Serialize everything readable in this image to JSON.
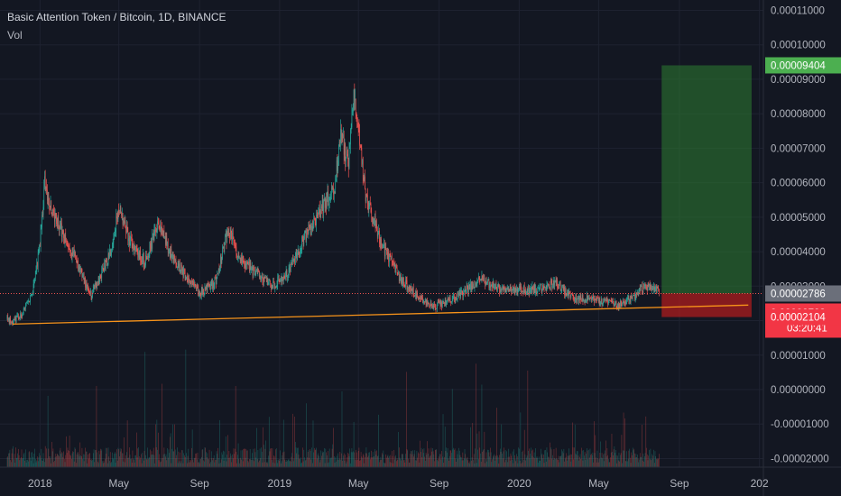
{
  "header": {
    "title": "Basic Attention Token / Bitcoin, 1D, BINANCE",
    "indicator": "Vol"
  },
  "colors": {
    "background": "#131722",
    "grid": "#1e2230",
    "up": "#26a69a",
    "down": "#ef5350",
    "trendline": "#f7931a",
    "profit_zone": "#2e7d32",
    "loss_zone": "#b71c1c",
    "profit_label": "#4caf50",
    "loss_label": "#f23645",
    "current_label": "#6b6f7a"
  },
  "chart_data": {
    "type": "candlestick",
    "symbol": "Basic Attention Token / Bitcoin",
    "interval": "1D",
    "exchange": "BINANCE",
    "y_axis": {
      "ticks": [
        "0.00011000",
        "0.00010000",
        "0.00009000",
        "0.00008000",
        "0.00007000",
        "0.00006000",
        "0.00005000",
        "0.00004000",
        "0.00003000",
        "0.00002000",
        "0.00001000",
        "0.00000000",
        "-0.00001000",
        "-0.00002000"
      ],
      "ylim": [
        -2.25e-05,
        0.000113
      ]
    },
    "x_axis": {
      "ticks": [
        {
          "label": "2018",
          "date": "2018-01-01"
        },
        {
          "label": "May",
          "date": "2018-05-01"
        },
        {
          "label": "Sep",
          "date": "2018-09-01"
        },
        {
          "label": "2019",
          "date": "2019-01-01"
        },
        {
          "label": "May",
          "date": "2019-05-01"
        },
        {
          "label": "Sep",
          "date": "2019-09-01"
        },
        {
          "label": "2020",
          "date": "2020-01-01"
        },
        {
          "label": "May",
          "date": "2020-05-01"
        },
        {
          "label": "Sep",
          "date": "2020-09-01"
        },
        {
          "label": "202",
          "date": "2021-01-01"
        }
      ],
      "xlim": [
        "2017-11-01",
        "2021-01-07"
      ]
    },
    "price_path": [
      [
        "2017-11-12",
        2.05e-05
      ],
      [
        "2017-11-20",
        1.95e-05
      ],
      [
        "2017-12-05",
        2.2e-05
      ],
      [
        "2017-12-20",
        2.8e-05
      ],
      [
        "2018-01-01",
        4.2e-05
      ],
      [
        "2018-01-08",
        6e-05
      ],
      [
        "2018-01-20",
        5.2e-05
      ],
      [
        "2018-02-05",
        4.5e-05
      ],
      [
        "2018-02-25",
        3.7e-05
      ],
      [
        "2018-03-20",
        2.7e-05
      ],
      [
        "2018-04-15",
        3.8e-05
      ],
      [
        "2018-05-01",
        5.2e-05
      ],
      [
        "2018-05-20",
        4.2e-05
      ],
      [
        "2018-06-10",
        3.7e-05
      ],
      [
        "2018-06-30",
        4.8e-05
      ],
      [
        "2018-07-20",
        3.9e-05
      ],
      [
        "2018-08-10",
        3.3e-05
      ],
      [
        "2018-08-31",
        2.8e-05
      ],
      [
        "2018-09-25",
        3.1e-05
      ],
      [
        "2018-10-15",
        4.7e-05
      ],
      [
        "2018-10-31",
        3.8e-05
      ],
      [
        "2018-11-25",
        3.4e-05
      ],
      [
        "2018-12-20",
        3e-05
      ],
      [
        "2019-01-15",
        3.4e-05
      ],
      [
        "2019-02-10",
        4.5e-05
      ],
      [
        "2019-03-05",
        5.2e-05
      ],
      [
        "2019-03-25",
        5.8e-05
      ],
      [
        "2019-04-05",
        7.5e-05
      ],
      [
        "2019-04-15",
        6.5e-05
      ],
      [
        "2019-04-25",
        8.6e-05
      ],
      [
        "2019-05-01",
        7.6e-05
      ],
      [
        "2019-05-12",
        5.7e-05
      ],
      [
        "2019-06-05",
        4.2e-05
      ],
      [
        "2019-07-01",
        3.3e-05
      ],
      [
        "2019-07-25",
        2.8e-05
      ],
      [
        "2019-08-20",
        2.4e-05
      ],
      [
        "2019-09-05",
        2.5e-05
      ],
      [
        "2019-09-25",
        2.65e-05
      ],
      [
        "2019-10-20",
        3e-05
      ],
      [
        "2019-11-05",
        3.2e-05
      ],
      [
        "2019-11-25",
        2.95e-05
      ],
      [
        "2019-12-20",
        2.85e-05
      ],
      [
        "2020-01-10",
        2.9e-05
      ],
      [
        "2020-02-05",
        2.95e-05
      ],
      [
        "2020-02-25",
        3.1e-05
      ],
      [
        "2020-03-20",
        2.7e-05
      ],
      [
        "2020-04-20",
        2.6e-05
      ],
      [
        "2020-05-10",
        2.55e-05
      ],
      [
        "2020-05-30",
        2.45e-05
      ],
      [
        "2020-06-20",
        2.65e-05
      ],
      [
        "2020-07-10",
        3e-05
      ],
      [
        "2020-07-25",
        2.9e-05
      ],
      [
        "2020-08-01",
        2.86e-05
      ]
    ],
    "trendline": {
      "start": [
        "2017-11-20",
        1.9e-05
      ],
      "end": [
        "2020-12-15",
        2.45e-05
      ]
    },
    "horizontal_line": {
      "value": 2.786e-05
    },
    "position": {
      "start": "2020-08-05",
      "end": "2020-12-20",
      "entry": 2.786e-05,
      "target": 9.404e-05,
      "stop": 2.104e-05
    },
    "price_labels": {
      "target": "0.00009404",
      "current": "0.00002786",
      "stop_zone": "0.00002723",
      "countdown": "03:20:41",
      "stop": "0.00002104"
    }
  }
}
